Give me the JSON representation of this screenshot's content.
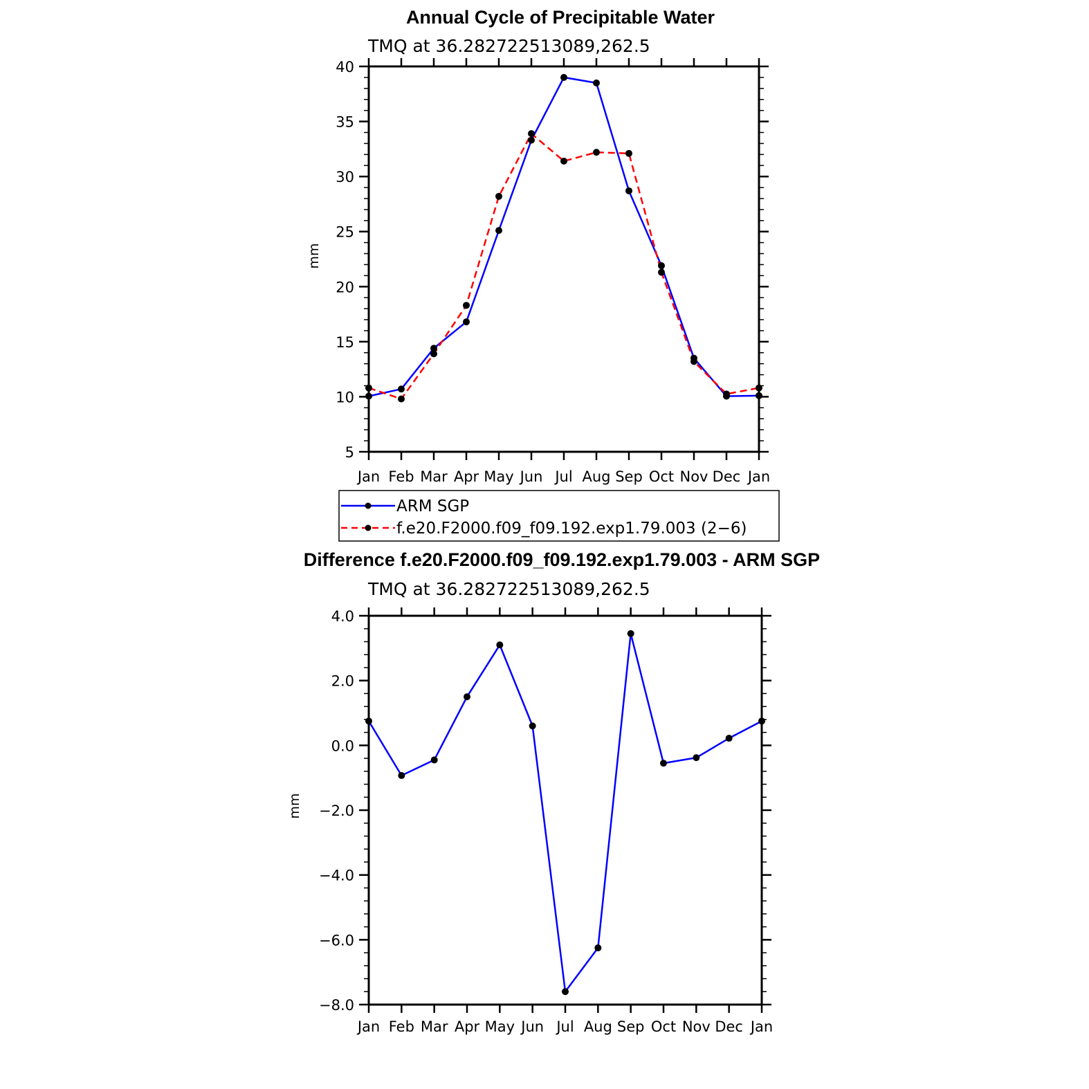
{
  "chart_data": [
    {
      "type": "line",
      "title": "Annual Cycle of Precipitable Water",
      "subtitle": "TMQ at 36.282722513089,262.5",
      "xlabel": "",
      "ylabel": "mm",
      "categories": [
        "Jan",
        "Feb",
        "Mar",
        "Apr",
        "May",
        "Jun",
        "Jul",
        "Aug",
        "Sep",
        "Oct",
        "Nov",
        "Dec",
        "Jan"
      ],
      "ylim": [
        5,
        40
      ],
      "yticks": [
        "5",
        "10",
        "15",
        "20",
        "25",
        "30",
        "35",
        "40"
      ],
      "ytick_values": [
        5,
        10,
        15,
        20,
        25,
        30,
        35,
        40
      ],
      "grid": false,
      "legend_position": "bottom",
      "series": [
        {
          "name": "ARM SGP",
          "color": "#0000ff",
          "dash": "solid",
          "values": [
            10.05,
            10.7,
            14.4,
            16.8,
            25.1,
            33.3,
            39.0,
            38.5,
            28.7,
            21.9,
            13.5,
            10.05,
            10.1
          ]
        },
        {
          "name": "f.e20.F2000.f09_f09.192.exp1.79.003 (2−6)",
          "color": "#ff0000",
          "dash": "dashed",
          "values": [
            10.8,
            9.8,
            13.9,
            18.3,
            28.2,
            33.9,
            31.4,
            32.2,
            32.1,
            21.3,
            13.2,
            10.25,
            10.8
          ]
        }
      ]
    },
    {
      "type": "line",
      "title": "Difference f.e20.F2000.f09_f09.192.exp1.79.003 - ARM SGP",
      "subtitle": "TMQ at 36.282722513089,262.5",
      "xlabel": "",
      "ylabel": "mm",
      "categories": [
        "Jan",
        "Feb",
        "Mar",
        "Apr",
        "May",
        "Jun",
        "Jul",
        "Aug",
        "Sep",
        "Oct",
        "Nov",
        "Dec",
        "Jan"
      ],
      "ylim": [
        -8,
        4
      ],
      "yticks": [
        "−8.0",
        "−6.0",
        "−4.0",
        "−2.0",
        "0.0",
        "2.0",
        "4.0"
      ],
      "ytick_values": [
        -8,
        -6,
        -4,
        -2,
        0,
        2,
        4
      ],
      "grid": false,
      "series": [
        {
          "name": "Difference",
          "color": "#0000ff",
          "dash": "solid",
          "values": [
            0.75,
            -0.93,
            -0.45,
            1.5,
            3.1,
            0.6,
            -7.6,
            -6.25,
            3.45,
            -0.55,
            -0.38,
            0.22,
            0.75
          ]
        }
      ]
    }
  ]
}
